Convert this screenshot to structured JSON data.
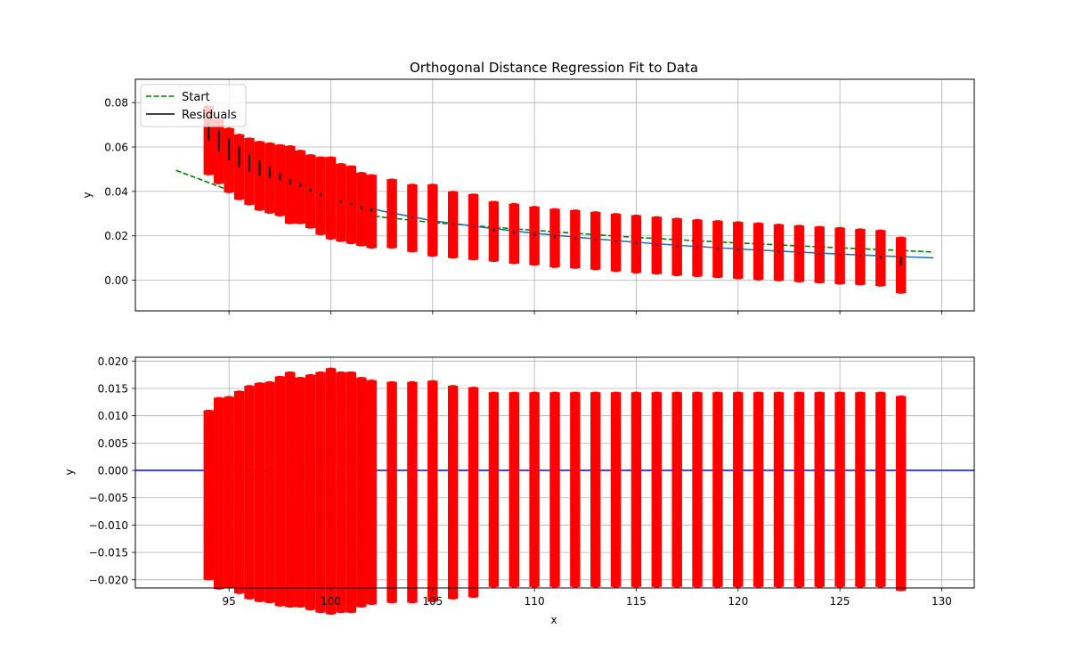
{
  "chart_data": [
    {
      "type": "line",
      "title": "Orthogonal Distance Regression Fit to Data",
      "xlabel": "",
      "ylabel": "y",
      "xlim": [
        90.4,
        131.6
      ],
      "ylim": [
        -0.0138,
        0.0905
      ],
      "grid": true,
      "xtick_labels_visible": false,
      "xticks": [
        95,
        100,
        105,
        110,
        115,
        120,
        125,
        130
      ],
      "yticks": [
        0.0,
        0.02,
        0.04,
        0.06,
        0.08
      ],
      "ytick_labels": [
        "0.00",
        "0.02",
        "0.04",
        "0.06",
        "0.08"
      ],
      "legend": {
        "position": "upper-left",
        "entries": [
          {
            "label": "Start",
            "color": "#008000",
            "style": "dashed"
          },
          {
            "label": "Residuals",
            "color": "#000000",
            "style": "solid"
          }
        ]
      },
      "series": [
        {
          "role": "start",
          "color": "#008000",
          "style": "dashed",
          "x": [
            92.4,
            95,
            97.5,
            100,
            102.5,
            105,
            107.5,
            110,
            112.5,
            115,
            117.5,
            120,
            122.5,
            125,
            127.5,
            129.6
          ],
          "y": [
            0.0495,
            0.0405,
            0.0355,
            0.0315,
            0.0285,
            0.026,
            0.0242,
            0.0225,
            0.0208,
            0.0193,
            0.018,
            0.0168,
            0.0157,
            0.0146,
            0.0136,
            0.0127
          ]
        },
        {
          "role": "fit",
          "color": "#1f77b4",
          "style": "solid",
          "x": [
            94,
            96,
            98,
            100,
            102.5,
            105,
            107.5,
            110,
            112.5,
            115,
            117.5,
            120,
            122.5,
            125,
            127.5,
            129.6
          ],
          "y": [
            0.0712,
            0.0565,
            0.0455,
            0.037,
            0.0312,
            0.0268,
            0.0238,
            0.0212,
            0.019,
            0.0171,
            0.0155,
            0.0141,
            0.0129,
            0.0118,
            0.0108,
            0.0101
          ]
        },
        {
          "role": "data",
          "color": "#ff0000",
          "marker": "circle",
          "x": [
            94,
            94.5,
            95,
            95.5,
            96,
            96.5,
            97,
            97.5,
            98,
            98.5,
            99,
            99.5,
            100,
            100.5,
            101,
            101.5,
            102,
            103,
            104,
            105,
            106,
            107,
            108,
            109,
            110,
            111,
            112,
            113,
            114,
            115,
            116,
            117,
            118,
            119,
            120,
            121,
            122,
            123,
            124,
            125,
            126,
            127,
            128
          ],
          "y": [
            0.063,
            0.058,
            0.054,
            0.051,
            0.049,
            0.047,
            0.046,
            0.045,
            0.043,
            0.042,
            0.04,
            0.038,
            0.037,
            0.035,
            0.034,
            0.032,
            0.031,
            0.03,
            0.028,
            0.027,
            0.025,
            0.024,
            0.022,
            0.021,
            0.02,
            0.019,
            0.0185,
            0.0178,
            0.017,
            0.0163,
            0.0157,
            0.015,
            0.0145,
            0.014,
            0.0135,
            0.013,
            0.0125,
            0.012,
            0.0115,
            0.011,
            0.0105,
            0.01,
            0.0068
          ],
          "yerr": [
            0.0155,
            0.0145,
            0.0145,
            0.0147,
            0.015,
            0.0155,
            0.0158,
            0.016,
            0.0175,
            0.0165,
            0.0165,
            0.0175,
            0.0185,
            0.0175,
            0.0175,
            0.0165,
            0.0165,
            0.0155,
            0.0152,
            0.0162,
            0.015,
            0.0148,
            0.0135,
            0.0135,
            0.0132,
            0.0132,
            0.0131,
            0.013,
            0.013,
            0.013,
            0.0129,
            0.0129,
            0.0128,
            0.0128,
            0.0128,
            0.0128,
            0.0127,
            0.0127,
            0.0127,
            0.0127,
            0.0126,
            0.0126,
            0.0126
          ]
        }
      ]
    },
    {
      "type": "line",
      "title": "",
      "xlabel": "x",
      "ylabel": "y",
      "xlim": [
        90.4,
        131.6
      ],
      "ylim": [
        -0.0215,
        0.0207
      ],
      "grid": true,
      "xticks": [
        95,
        100,
        105,
        110,
        115,
        120,
        125,
        130
      ],
      "xtick_labels": [
        "95",
        "100",
        "105",
        "110",
        "115",
        "120",
        "125",
        "130"
      ],
      "yticks": [
        -0.02,
        -0.015,
        -0.01,
        -0.005,
        0.0,
        0.005,
        0.01,
        0.015,
        0.02
      ],
      "ytick_labels": [
        "−0.020",
        "−0.015",
        "−0.010",
        "−0.005",
        "0.000",
        "0.005",
        "0.010",
        "0.015",
        "0.020"
      ],
      "series": [
        {
          "role": "zero-line",
          "color": "#0000ff",
          "style": "solid",
          "x": [
            90.4,
            131.6
          ],
          "y": [
            0,
            0
          ]
        },
        {
          "role": "residuals",
          "color": "#ff0000",
          "marker": "circle",
          "x": [
            94,
            94.5,
            95,
            95.5,
            96,
            96.5,
            97,
            97.5,
            98,
            98.5,
            99,
            99.5,
            100,
            100.5,
            101,
            101.5,
            102,
            103,
            104,
            105,
            106,
            107,
            108,
            109,
            110,
            111,
            112,
            113,
            114,
            115,
            116,
            117,
            118,
            119,
            120,
            121,
            122,
            123,
            124,
            125,
            126,
            127,
            128
          ],
          "y": [
            -0.0045,
            -0.0042,
            -0.004,
            -0.004,
            -0.004,
            -0.004,
            -0.004,
            -0.0038,
            -0.0035,
            -0.004,
            -0.004,
            -0.004,
            -0.0038,
            -0.004,
            -0.004,
            -0.004,
            -0.004,
            -0.004,
            -0.004,
            -0.0038,
            -0.004,
            -0.004,
            -0.0035,
            -0.0035,
            -0.0035,
            -0.0035,
            -0.0035,
            -0.0035,
            -0.0035,
            -0.0035,
            -0.0035,
            -0.0035,
            -0.0035,
            -0.0035,
            -0.0035,
            -0.0035,
            -0.0035,
            -0.0035,
            -0.0035,
            -0.0035,
            -0.0035,
            -0.0035,
            -0.0042
          ],
          "yerr": [
            0.0155,
            0.0175,
            0.0175,
            0.0185,
            0.0195,
            0.02,
            0.0202,
            0.021,
            0.0215,
            0.021,
            0.0215,
            0.022,
            0.0225,
            0.022,
            0.022,
            0.021,
            0.0205,
            0.0202,
            0.0202,
            0.0202,
            0.0195,
            0.0192,
            0.0178,
            0.0178,
            0.0178,
            0.0178,
            0.0178,
            0.0178,
            0.0178,
            0.0178,
            0.0178,
            0.0178,
            0.0178,
            0.0178,
            0.0178,
            0.0178,
            0.0178,
            0.0178,
            0.0178,
            0.0178,
            0.0178,
            0.0178,
            0.0178
          ]
        }
      ]
    }
  ]
}
